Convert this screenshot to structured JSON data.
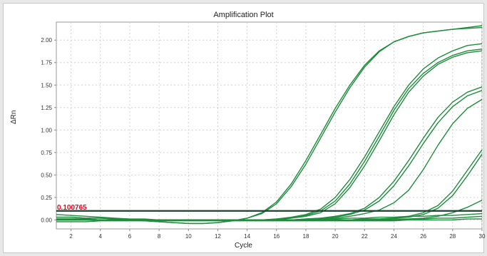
{
  "chart_data": {
    "type": "line",
    "title": "Amplification Plot",
    "xlabel": "Cycle",
    "ylabel": "ΔRn",
    "xlim": [
      1,
      30
    ],
    "ylim": [
      -0.1,
      2.2
    ],
    "x_ticks": [
      2,
      4,
      6,
      8,
      10,
      12,
      14,
      16,
      18,
      20,
      22,
      24,
      26,
      28,
      30
    ],
    "y_ticks": [
      0.0,
      0.25,
      0.5,
      0.75,
      1.0,
      1.25,
      1.5,
      1.75,
      2.0
    ],
    "x_tick_labels": [
      "2",
      "4",
      "6",
      "8",
      "10",
      "12",
      "14",
      "16",
      "18",
      "20",
      "22",
      "24",
      "26",
      "28",
      "30"
    ],
    "y_tick_labels": [
      "0.00",
      "0.25",
      "0.50",
      "0.75",
      "1.00",
      "1.25",
      "1.50",
      "1.75",
      "2.00"
    ],
    "grid": true,
    "threshold": {
      "value": 0.1,
      "label": "0.100765",
      "color": "#e8001c"
    },
    "line_color": "#1e8c3c",
    "threshold_line_color": "#1f4030",
    "x": [
      1,
      2,
      3,
      4,
      5,
      6,
      7,
      8,
      9,
      10,
      11,
      12,
      13,
      14,
      15,
      16,
      17,
      18,
      19,
      20,
      21,
      22,
      23,
      24,
      25,
      26,
      27,
      28,
      29,
      30
    ],
    "series": [
      {
        "values": [
          0.03,
          0.03,
          0.02,
          0.02,
          0.01,
          0.0,
          -0.01,
          -0.02,
          -0.03,
          -0.04,
          -0.04,
          -0.03,
          -0.01,
          0.02,
          0.08,
          0.2,
          0.4,
          0.66,
          0.95,
          1.24,
          1.5,
          1.72,
          1.88,
          1.98,
          2.04,
          2.08,
          2.1,
          2.12,
          2.13,
          2.14
        ]
      },
      {
        "values": [
          0.03,
          0.03,
          0.02,
          0.02,
          0.01,
          0.0,
          -0.01,
          -0.02,
          -0.03,
          -0.04,
          -0.04,
          -0.03,
          -0.01,
          0.02,
          0.07,
          0.18,
          0.37,
          0.62,
          0.91,
          1.2,
          1.47,
          1.7,
          1.87,
          1.98,
          2.04,
          2.08,
          2.1,
          2.12,
          2.14,
          2.16
        ]
      },
      {
        "values": [
          0.01,
          0.01,
          0.01,
          0.0,
          0.0,
          0.0,
          0.0,
          0.0,
          0.0,
          0.0,
          0.0,
          0.0,
          0.0,
          0.0,
          0.0,
          0.01,
          0.03,
          0.06,
          0.12,
          0.25,
          0.45,
          0.7,
          0.98,
          1.26,
          1.5,
          1.68,
          1.8,
          1.88,
          1.94,
          1.96
        ]
      },
      {
        "values": [
          0.01,
          0.01,
          0.01,
          0.0,
          0.0,
          0.0,
          0.0,
          0.0,
          0.0,
          0.0,
          0.0,
          0.0,
          0.0,
          0.0,
          0.0,
          0.01,
          0.02,
          0.05,
          0.1,
          0.21,
          0.4,
          0.65,
          0.93,
          1.22,
          1.46,
          1.63,
          1.75,
          1.83,
          1.88,
          1.9
        ]
      },
      {
        "values": [
          0.01,
          0.01,
          0.01,
          0.0,
          0.0,
          0.0,
          0.0,
          0.0,
          0.0,
          0.0,
          0.0,
          0.0,
          0.0,
          0.0,
          0.0,
          0.0,
          0.02,
          0.04,
          0.08,
          0.18,
          0.36,
          0.6,
          0.88,
          1.17,
          1.42,
          1.6,
          1.73,
          1.81,
          1.86,
          1.88
        ]
      },
      {
        "values": [
          0.0,
          0.0,
          0.0,
          0.0,
          0.0,
          0.0,
          0.0,
          0.0,
          0.0,
          0.0,
          0.0,
          0.0,
          0.0,
          0.0,
          0.0,
          0.0,
          0.0,
          0.01,
          0.02,
          0.04,
          0.07,
          0.13,
          0.25,
          0.43,
          0.66,
          0.91,
          1.14,
          1.31,
          1.42,
          1.48
        ]
      },
      {
        "values": [
          0.0,
          0.0,
          0.0,
          0.0,
          0.0,
          0.0,
          0.0,
          0.0,
          0.0,
          0.0,
          0.0,
          0.0,
          0.0,
          0.0,
          0.0,
          0.0,
          0.0,
          0.01,
          0.02,
          0.03,
          0.06,
          0.11,
          0.21,
          0.38,
          0.6,
          0.85,
          1.08,
          1.26,
          1.38,
          1.44
        ]
      },
      {
        "values": [
          0.0,
          0.0,
          0.0,
          0.0,
          0.0,
          0.0,
          0.0,
          0.0,
          0.0,
          0.0,
          0.0,
          0.0,
          0.0,
          0.0,
          0.0,
          0.0,
          0.0,
          0.0,
          0.01,
          0.02,
          0.04,
          0.07,
          0.11,
          0.19,
          0.33,
          0.56,
          0.83,
          1.07,
          1.24,
          1.34
        ]
      },
      {
        "values": [
          0.0,
          0.0,
          0.0,
          0.0,
          0.0,
          0.0,
          0.0,
          0.0,
          0.0,
          0.0,
          0.0,
          0.0,
          0.0,
          0.0,
          0.0,
          0.0,
          0.0,
          0.0,
          0.0,
          0.0,
          0.0,
          0.01,
          0.01,
          0.02,
          0.04,
          0.08,
          0.16,
          0.32,
          0.55,
          0.78
        ]
      },
      {
        "values": [
          0.0,
          0.0,
          0.0,
          0.0,
          0.0,
          0.0,
          0.0,
          0.0,
          0.0,
          0.0,
          0.0,
          0.0,
          0.0,
          0.0,
          0.0,
          0.0,
          0.0,
          0.0,
          0.0,
          0.0,
          0.0,
          0.01,
          0.01,
          0.02,
          0.03,
          0.06,
          0.13,
          0.27,
          0.49,
          0.73
        ]
      },
      {
        "values": [
          0.0,
          0.0,
          0.0,
          0.0,
          0.0,
          0.0,
          0.0,
          0.0,
          0.0,
          0.0,
          0.0,
          0.0,
          0.0,
          0.0,
          0.0,
          0.0,
          0.0,
          0.0,
          0.0,
          0.0,
          0.0,
          0.0,
          0.0,
          0.0,
          0.01,
          0.02,
          0.04,
          0.08,
          0.14,
          0.22
        ]
      },
      {
        "values": [
          0.06,
          0.05,
          0.04,
          0.03,
          0.02,
          0.01,
          0.01,
          0.0,
          0.0,
          0.0,
          0.0,
          0.0,
          0.0,
          0.0,
          0.0,
          0.0,
          0.0,
          0.0,
          0.01,
          0.01,
          0.02,
          0.02,
          0.03,
          0.03,
          0.04,
          0.04,
          0.05,
          0.05,
          0.06,
          0.07
        ]
      },
      {
        "values": [
          0.0,
          0.0,
          0.0,
          0.0,
          0.0,
          0.0,
          0.0,
          0.0,
          0.0,
          0.0,
          0.0,
          0.0,
          0.0,
          0.0,
          0.0,
          0.0,
          0.0,
          0.0,
          0.0,
          0.0,
          0.0,
          0.0,
          0.0,
          0.01,
          0.01,
          0.01,
          0.02,
          0.02,
          0.03,
          0.04
        ]
      },
      {
        "values": [
          -0.02,
          -0.02,
          -0.02,
          -0.01,
          -0.01,
          -0.01,
          -0.01,
          -0.01,
          -0.01,
          -0.01,
          -0.01,
          -0.01,
          -0.01,
          -0.01,
          -0.01,
          -0.01,
          -0.01,
          -0.01,
          -0.01,
          -0.01,
          -0.01,
          -0.01,
          -0.01,
          -0.01,
          0.0,
          0.0,
          0.0,
          0.0,
          0.01,
          0.01
        ]
      }
    ]
  }
}
